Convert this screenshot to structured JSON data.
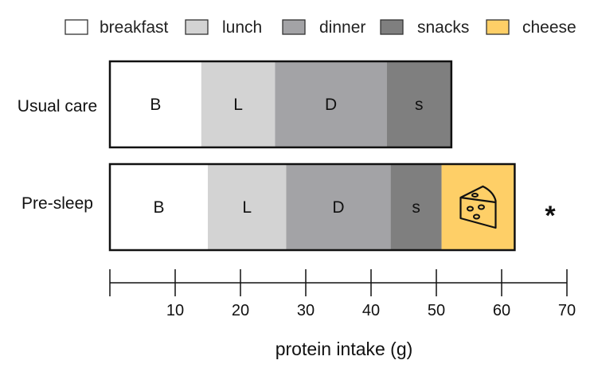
{
  "chart_data": {
    "type": "bar",
    "orientation": "horizontal",
    "stacked": true,
    "categories": [
      "Usual care",
      "Pre-sleep"
    ],
    "series": [
      {
        "name": "breakfast",
        "segment_label": "B",
        "color": "#ffffff",
        "values": [
          14,
          15
        ]
      },
      {
        "name": "lunch",
        "segment_label": "L",
        "color": "#d3d3d3",
        "values": [
          11.3,
          12
        ]
      },
      {
        "name": "dinner",
        "segment_label": "D",
        "color": "#a3a3a6",
        "values": [
          17.1,
          16
        ]
      },
      {
        "name": "snacks",
        "segment_label": "s",
        "color": "#7f7f7f",
        "values": [
          9.9,
          7.8
        ]
      },
      {
        "name": "cheese",
        "segment_label": "",
        "color": "#fecf67",
        "values": [
          0,
          11.2
        ]
      }
    ],
    "xlabel": "protein intake (g)",
    "xlim": [
      0,
      70
    ],
    "xticks": [
      10,
      20,
      30,
      40,
      50,
      60,
      70
    ],
    "annotations": [
      {
        "category": "Pre-sleep",
        "text": "*"
      }
    ],
    "legend_position": "top",
    "grid": false
  }
}
